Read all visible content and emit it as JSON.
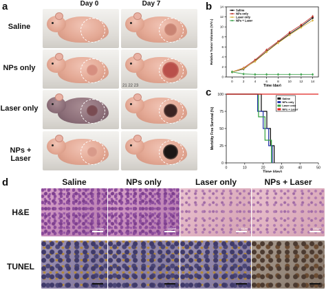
{
  "panels": {
    "a": "a",
    "b": "b",
    "c": "c",
    "d": "d"
  },
  "panel_a": {
    "col_headers": [
      "Day 0",
      "Day 7"
    ],
    "row_labels": [
      "Saline",
      "NPs only",
      "Laser only",
      "NPs + Laser"
    ],
    "ruler_text": "21   22   23"
  },
  "panel_d": {
    "col_headers": [
      "Saline",
      "NPs only",
      "Laser only",
      "NPs + Laser"
    ],
    "row_labels": [
      "H&E",
      "TUNEL"
    ],
    "scalebar_labels": [
      "100μm",
      "100μm",
      "100μm",
      "100μm"
    ]
  },
  "chart_data": [
    {
      "type": "line",
      "panel": "b",
      "xlabel": "Time (day)",
      "ylabel": "Relative Tumor Volumes (V/V₀)",
      "xlim": [
        -1,
        15
      ],
      "ylim": [
        0,
        14
      ],
      "xticks": [
        0,
        2,
        4,
        6,
        8,
        10,
        12,
        14
      ],
      "yticks": [
        0,
        2,
        4,
        6,
        8,
        10,
        12,
        14
      ],
      "x": [
        0,
        2,
        4,
        6,
        8,
        10,
        12,
        14
      ],
      "legend_position": "top-left",
      "series": [
        {
          "name": "Saline",
          "color": "#000000",
          "values": [
            1.0,
            1.6,
            3.2,
            5.1,
            6.9,
            8.6,
            10.1,
            11.8
          ]
        },
        {
          "name": "NPs only",
          "color": "#c0332b",
          "values": [
            1.0,
            1.8,
            3.4,
            5.4,
            7.1,
            8.9,
            10.4,
            12.1
          ]
        },
        {
          "name": "Laser only",
          "color": "#d7b443",
          "values": [
            1.0,
            1.7,
            3.1,
            5.0,
            6.8,
            8.4,
            9.9,
            11.3
          ]
        },
        {
          "name": "NPs + Laser",
          "color": "#3ba14a",
          "values": [
            1.0,
            0.6,
            0.5,
            0.5,
            0.5,
            0.5,
            0.5,
            0.5
          ]
        }
      ]
    },
    {
      "type": "line",
      "panel": "c",
      "step": true,
      "xlabel": "Time (day)",
      "ylabel": "Morbility Free Survival (%)",
      "xlim": [
        0,
        50
      ],
      "ylim": [
        0,
        100
      ],
      "xticks": [
        0,
        10,
        20,
        30,
        40,
        50
      ],
      "yticks": [
        0,
        25,
        50,
        75,
        100
      ],
      "legend_position": "top-right",
      "series": [
        {
          "name": "Saline",
          "color": "#000000",
          "x": [
            0,
            19,
            19,
            22,
            22,
            24,
            24,
            26,
            26
          ],
          "values": [
            100,
            100,
            75,
            75,
            50,
            50,
            25,
            25,
            0
          ]
        },
        {
          "name": "NPs only",
          "color": "#1f2fa8",
          "x": [
            0,
            17,
            17,
            20,
            20,
            23,
            23,
            25,
            25
          ],
          "values": [
            100,
            100,
            75,
            75,
            50,
            50,
            25,
            25,
            0
          ]
        },
        {
          "name": "Laser only",
          "color": "#2fa03a",
          "x": [
            0,
            17.5,
            17.5,
            21,
            21,
            24.5,
            24.5
          ],
          "values": [
            100,
            100,
            67,
            67,
            33,
            33,
            0
          ]
        },
        {
          "name": "NPs + Laser",
          "color": "#e0201c",
          "x": [
            0,
            50
          ],
          "values": [
            100,
            100
          ]
        }
      ]
    }
  ]
}
